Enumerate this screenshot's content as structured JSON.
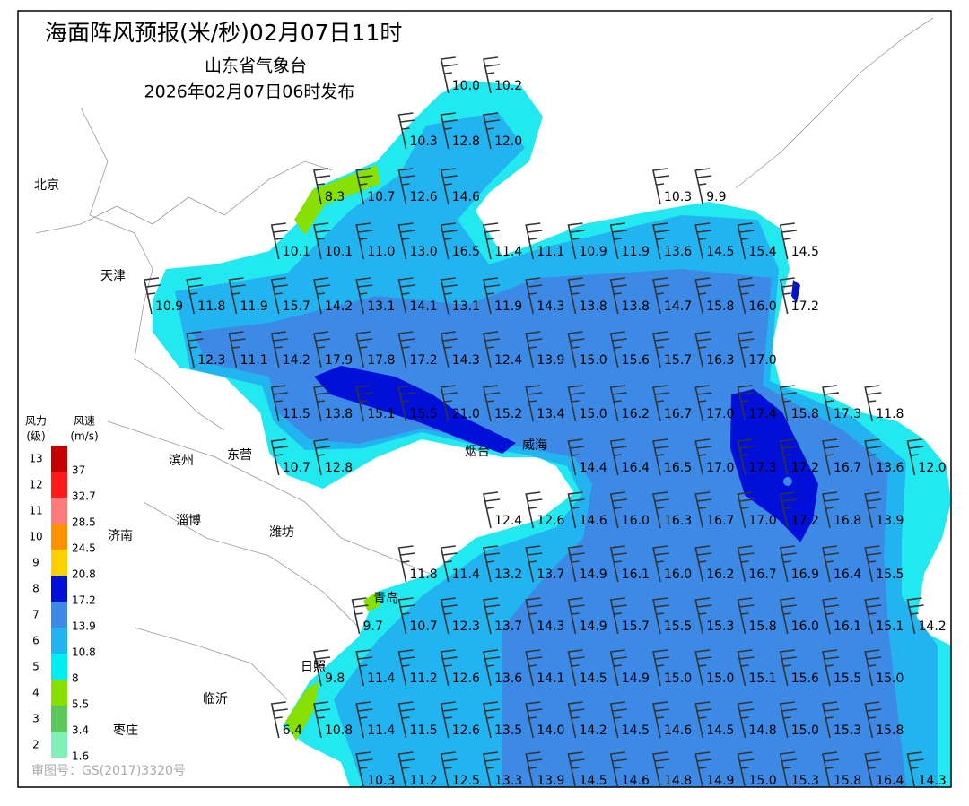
{
  "header": {
    "title": "海面阵风预报(米/秒)02月07日11时",
    "issuer": "山东省气象台",
    "issued": "2026年02月07日06时发布"
  },
  "legend": {
    "level_title": [
      "风力",
      "(级)"
    ],
    "speed_title": [
      "风速",
      "(m/s)"
    ],
    "levels": [
      "13",
      "12",
      "11",
      "10",
      "9",
      "8",
      "7",
      "6",
      "5",
      "4",
      "3",
      "2"
    ],
    "speeds": [
      "37",
      "32.7",
      "28.5",
      "24.5",
      "20.8",
      "17.2",
      "13.9",
      "10.8",
      "8",
      "5.5",
      "3.4",
      "1.6"
    ],
    "colors": [
      "#c40000",
      "#ff1a1a",
      "#ff7a7a",
      "#ff9000",
      "#ffd000",
      "#0010d8",
      "#3c8ae6",
      "#22b4f0",
      "#00eef0",
      "#88e000",
      "#5cc85c",
      "#80f0b8"
    ]
  },
  "cities": [
    "北京",
    "天津",
    "滨州",
    "东营",
    "淄博",
    "济南",
    "潍坊",
    "烟台",
    "威海",
    "青岛",
    "日照",
    "临沂",
    "枣庄"
  ],
  "wind_rows": [
    [
      "10.0",
      "10.2"
    ],
    [
      "10.3",
      "12.8",
      "12.0"
    ],
    [
      "8.3",
      "10.7",
      "12.6",
      "14.6",
      "10.3",
      "9.9"
    ],
    [
      "10.1",
      "10.1",
      "11.0",
      "13.0",
      "16.5",
      "11.4",
      "11.1",
      "10.9",
      "11.9",
      "13.6",
      "14.5",
      "15.4",
      "14.5"
    ],
    [
      "10.9",
      "11.8",
      "11.9",
      "15.7",
      "14.2",
      "13.1",
      "14.1",
      "13.1",
      "11.9",
      "14.3",
      "13.8",
      "13.8",
      "14.7",
      "15.8",
      "16.0",
      "17.2"
    ],
    [
      "12.3",
      "11.1",
      "14.2",
      "17.9",
      "17.8",
      "17.2",
      "14.3",
      "12.4",
      "13.9",
      "15.0",
      "15.6",
      "15.7",
      "16.3",
      "17.0"
    ],
    [
      "11.5",
      "13.8",
      "15.1",
      "15.5",
      "21.0",
      "15.2",
      "13.4",
      "15.0",
      "16.2",
      "16.7",
      "17.0",
      "17.4",
      "15.8",
      "17.3",
      "11.8"
    ],
    [
      "10.7",
      "12.8",
      "14.4",
      "16.4",
      "16.5",
      "17.0",
      "17.3",
      "17.2",
      "16.7",
      "13.6",
      "12.0"
    ],
    [
      "12.4",
      "12.6",
      "14.6",
      "16.0",
      "16.3",
      "16.7",
      "17.0",
      "17.2",
      "16.8",
      "13.9"
    ],
    [
      "11.8",
      "11.4",
      "13.2",
      "13.7",
      "14.9",
      "16.1",
      "16.0",
      "16.2",
      "16.7",
      "16.9",
      "16.4",
      "15.5"
    ],
    [
      "9.7",
      "10.7",
      "12.3",
      "13.7",
      "14.3",
      "14.9",
      "15.7",
      "15.5",
      "15.3",
      "15.8",
      "16.0",
      "16.1",
      "15.1",
      "14.2"
    ],
    [
      "9.8",
      "11.4",
      "11.2",
      "12.6",
      "13.6",
      "14.1",
      "14.5",
      "14.9",
      "15.0",
      "15.0",
      "15.1",
      "15.6",
      "15.5",
      "15.0"
    ],
    [
      "6.4",
      "10.8",
      "11.4",
      "11.5",
      "12.6",
      "13.5",
      "14.0",
      "14.2",
      "14.5",
      "14.6",
      "14.5",
      "14.8",
      "15.0",
      "15.3",
      "15.8"
    ],
    [
      "10.3",
      "11.2",
      "12.5",
      "13.3",
      "13.9",
      "14.5",
      "14.6",
      "14.8",
      "14.9",
      "15.0",
      "15.3",
      "15.8",
      "16.4",
      "14.3"
    ]
  ],
  "footer": "审图号：GS(2017)3320号"
}
